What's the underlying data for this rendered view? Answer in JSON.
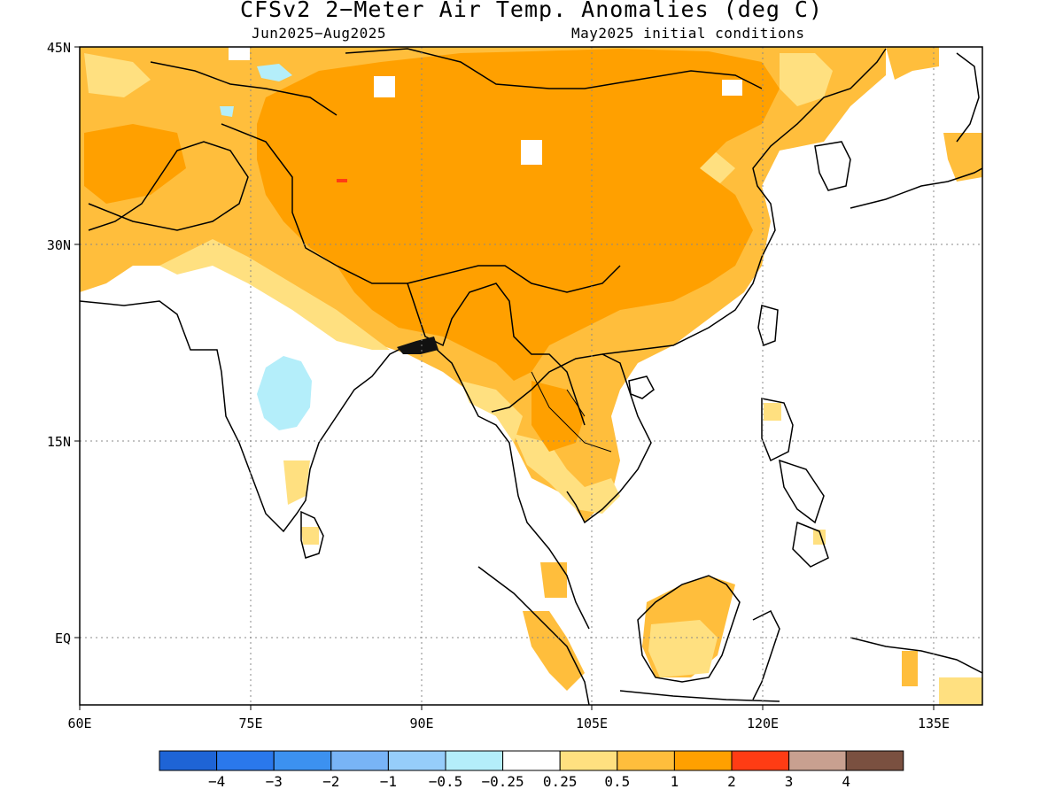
{
  "title": "CFSv2 2−Meter Air Temp. Anomalies (deg C)",
  "subtitle_left": "Jun2025−Aug2025",
  "subtitle_right": "May2025 initial conditions",
  "lat_labels": [
    "45N",
    "30N",
    "15N",
    "EQ"
  ],
  "lon_labels": [
    "60E",
    "75E",
    "90E",
    "105E",
    "120E",
    "135E"
  ],
  "colorbar": {
    "colors": [
      "#1e64d6",
      "#2a78ec",
      "#3c91f0",
      "#78b4f6",
      "#96cdfa",
      "#b4eefa",
      "#ffffff",
      "#ffe080",
      "#ffbe3c",
      "#ffa000",
      "#ff3c14",
      "#c8a090",
      "#7a5040"
    ],
    "labels": [
      "−4",
      "−3",
      "−2",
      "−1",
      "−0.5",
      "−0.25",
      "0.25",
      "0.5",
      "1",
      "2",
      "3",
      "4"
    ]
  }
}
